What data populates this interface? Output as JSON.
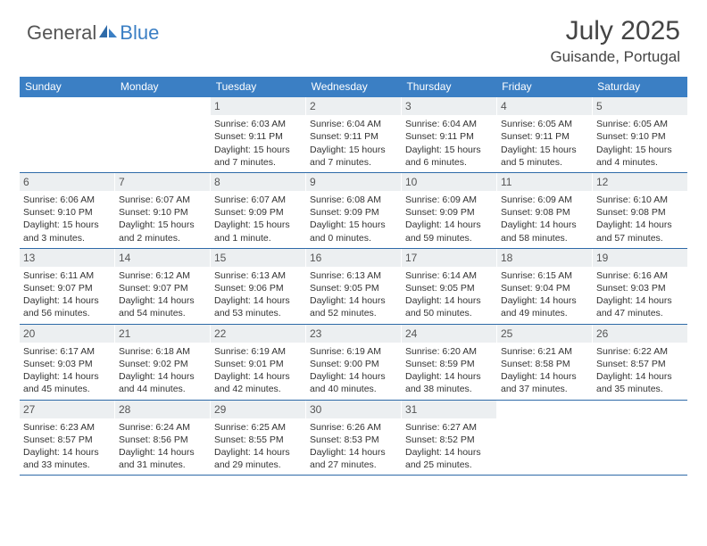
{
  "logo": {
    "general": "General",
    "blue": "Blue"
  },
  "title": "July 2025",
  "location": "Guisande, Portugal",
  "colors": {
    "header_bg": "#3b7fc4",
    "week_border": "#2e6aa8",
    "daynum_bg": "#eceff1",
    "text": "#333333"
  },
  "weekdays": [
    "Sunday",
    "Monday",
    "Tuesday",
    "Wednesday",
    "Thursday",
    "Friday",
    "Saturday"
  ],
  "weeks": [
    [
      null,
      null,
      {
        "n": "1",
        "sr": "6:03 AM",
        "ss": "9:11 PM",
        "dl": "15 hours and 7 minutes."
      },
      {
        "n": "2",
        "sr": "6:04 AM",
        "ss": "9:11 PM",
        "dl": "15 hours and 7 minutes."
      },
      {
        "n": "3",
        "sr": "6:04 AM",
        "ss": "9:11 PM",
        "dl": "15 hours and 6 minutes."
      },
      {
        "n": "4",
        "sr": "6:05 AM",
        "ss": "9:11 PM",
        "dl": "15 hours and 5 minutes."
      },
      {
        "n": "5",
        "sr": "6:05 AM",
        "ss": "9:10 PM",
        "dl": "15 hours and 4 minutes."
      }
    ],
    [
      {
        "n": "6",
        "sr": "6:06 AM",
        "ss": "9:10 PM",
        "dl": "15 hours and 3 minutes."
      },
      {
        "n": "7",
        "sr": "6:07 AM",
        "ss": "9:10 PM",
        "dl": "15 hours and 2 minutes."
      },
      {
        "n": "8",
        "sr": "6:07 AM",
        "ss": "9:09 PM",
        "dl": "15 hours and 1 minute."
      },
      {
        "n": "9",
        "sr": "6:08 AM",
        "ss": "9:09 PM",
        "dl": "15 hours and 0 minutes."
      },
      {
        "n": "10",
        "sr": "6:09 AM",
        "ss": "9:09 PM",
        "dl": "14 hours and 59 minutes."
      },
      {
        "n": "11",
        "sr": "6:09 AM",
        "ss": "9:08 PM",
        "dl": "14 hours and 58 minutes."
      },
      {
        "n": "12",
        "sr": "6:10 AM",
        "ss": "9:08 PM",
        "dl": "14 hours and 57 minutes."
      }
    ],
    [
      {
        "n": "13",
        "sr": "6:11 AM",
        "ss": "9:07 PM",
        "dl": "14 hours and 56 minutes."
      },
      {
        "n": "14",
        "sr": "6:12 AM",
        "ss": "9:07 PM",
        "dl": "14 hours and 54 minutes."
      },
      {
        "n": "15",
        "sr": "6:13 AM",
        "ss": "9:06 PM",
        "dl": "14 hours and 53 minutes."
      },
      {
        "n": "16",
        "sr": "6:13 AM",
        "ss": "9:05 PM",
        "dl": "14 hours and 52 minutes."
      },
      {
        "n": "17",
        "sr": "6:14 AM",
        "ss": "9:05 PM",
        "dl": "14 hours and 50 minutes."
      },
      {
        "n": "18",
        "sr": "6:15 AM",
        "ss": "9:04 PM",
        "dl": "14 hours and 49 minutes."
      },
      {
        "n": "19",
        "sr": "6:16 AM",
        "ss": "9:03 PM",
        "dl": "14 hours and 47 minutes."
      }
    ],
    [
      {
        "n": "20",
        "sr": "6:17 AM",
        "ss": "9:03 PM",
        "dl": "14 hours and 45 minutes."
      },
      {
        "n": "21",
        "sr": "6:18 AM",
        "ss": "9:02 PM",
        "dl": "14 hours and 44 minutes."
      },
      {
        "n": "22",
        "sr": "6:19 AM",
        "ss": "9:01 PM",
        "dl": "14 hours and 42 minutes."
      },
      {
        "n": "23",
        "sr": "6:19 AM",
        "ss": "9:00 PM",
        "dl": "14 hours and 40 minutes."
      },
      {
        "n": "24",
        "sr": "6:20 AM",
        "ss": "8:59 PM",
        "dl": "14 hours and 38 minutes."
      },
      {
        "n": "25",
        "sr": "6:21 AM",
        "ss": "8:58 PM",
        "dl": "14 hours and 37 minutes."
      },
      {
        "n": "26",
        "sr": "6:22 AM",
        "ss": "8:57 PM",
        "dl": "14 hours and 35 minutes."
      }
    ],
    [
      {
        "n": "27",
        "sr": "6:23 AM",
        "ss": "8:57 PM",
        "dl": "14 hours and 33 minutes."
      },
      {
        "n": "28",
        "sr": "6:24 AM",
        "ss": "8:56 PM",
        "dl": "14 hours and 31 minutes."
      },
      {
        "n": "29",
        "sr": "6:25 AM",
        "ss": "8:55 PM",
        "dl": "14 hours and 29 minutes."
      },
      {
        "n": "30",
        "sr": "6:26 AM",
        "ss": "8:53 PM",
        "dl": "14 hours and 27 minutes."
      },
      {
        "n": "31",
        "sr": "6:27 AM",
        "ss": "8:52 PM",
        "dl": "14 hours and 25 minutes."
      },
      null,
      null
    ]
  ],
  "labels": {
    "sunrise": "Sunrise:",
    "sunset": "Sunset:",
    "daylight": "Daylight:"
  }
}
